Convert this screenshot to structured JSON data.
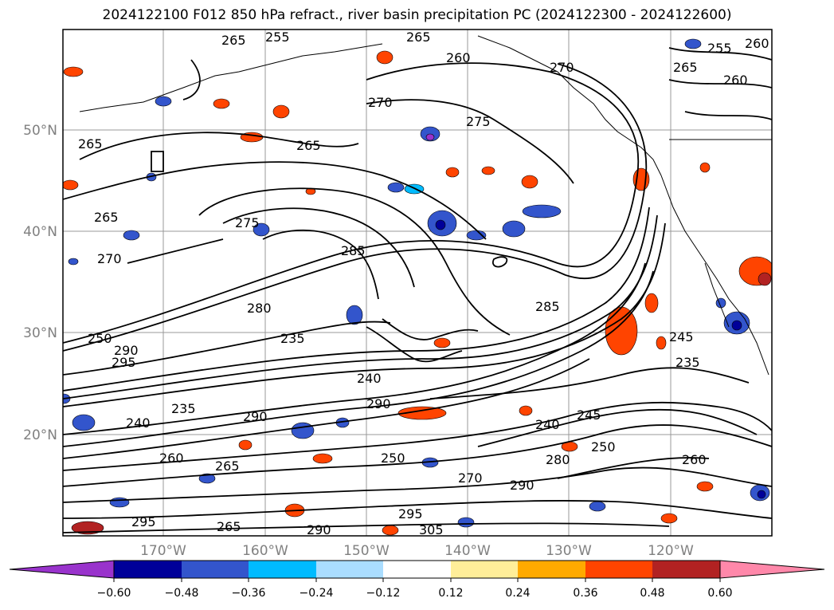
{
  "title": "2024122100 F012 850 hPa refract., river basin precipitation PC (2024122300 - 2024122600)",
  "map": {
    "lat_labels": [
      "50°N",
      "40°N",
      "30°N",
      "20°N"
    ],
    "lon_labels": [
      "170°W",
      "160°W",
      "150°W",
      "140°W",
      "130°W",
      "120°W"
    ],
    "contour_labels": [
      "265",
      "255",
      "265",
      "260",
      "270",
      "270",
      "275",
      "265",
      "260",
      "255",
      "260",
      "265",
      "265",
      "265",
      "275",
      "270",
      "285",
      "280",
      "250",
      "290",
      "295",
      "235",
      "240",
      "235",
      "240",
      "290",
      "260",
      "265",
      "285",
      "250",
      "270",
      "280",
      "290",
      "290",
      "240",
      "245",
      "250",
      "260",
      "245",
      "235",
      "295",
      "305",
      "295",
      "265",
      "290"
    ]
  },
  "colorbar": {
    "colors": [
      "#9933cc",
      "#000099",
      "#3355cc",
      "#00bbff",
      "#aaddff",
      "#ffffff",
      "#ffee99",
      "#ffaa00",
      "#ff4400",
      "#b22222",
      "#ff88aa"
    ],
    "ticks": [
      "−0.60",
      "−0.48",
      "−0.36",
      "−0.24",
      "−0.12",
      "0.12",
      "0.24",
      "0.36",
      "0.48",
      "0.60"
    ]
  }
}
